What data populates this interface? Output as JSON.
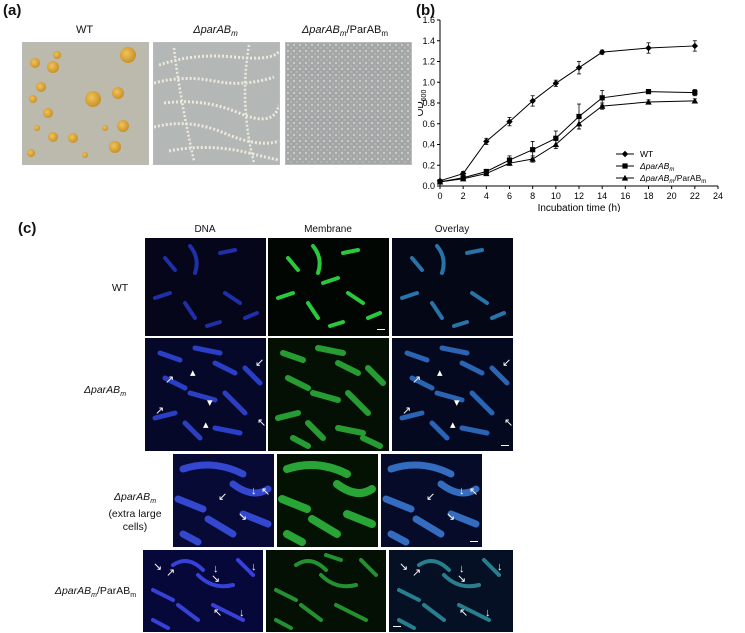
{
  "panels": {
    "a": {
      "letter": "(a)",
      "labels": [
        "WT",
        "ΔparAB",
        "ΔparAB/ParAB"
      ],
      "label_subs": [
        "",
        "m",
        "m"
      ],
      "label_tail": [
        "",
        "",
        "m"
      ]
    },
    "b": {
      "letter": "(b)"
    },
    "c": {
      "letter": "(c)",
      "columns": [
        "DNA",
        "Membrane",
        "Overlay"
      ],
      "rows": [
        {
          "main": "WT",
          "sub": "",
          "extra": "",
          "tail": ""
        },
        {
          "main": "ΔparAB",
          "sub": "m",
          "extra": "",
          "tail": ""
        },
        {
          "main": "ΔparAB",
          "sub": "m",
          "extra": "(extra large cells)",
          "tail": ""
        },
        {
          "main": "ΔparAB",
          "sub": "m",
          "extra": "",
          "tail": "/ParAB"
        }
      ],
      "row4_tail_sub": "m"
    }
  },
  "chart_data": {
    "type": "line",
    "xlabel": "Incubation time (h)",
    "ylabel": "OD",
    "ylabel_sub": "600",
    "xlim": [
      0,
      24
    ],
    "ylim": [
      0,
      1.6
    ],
    "xticks": [
      0,
      2,
      4,
      6,
      8,
      10,
      12,
      14,
      16,
      18,
      20,
      22,
      24
    ],
    "yticks": [
      0.0,
      0.2,
      0.4,
      0.6,
      0.8,
      1.0,
      1.2,
      1.4,
      1.6
    ],
    "legend_position": "bottom-right",
    "series": [
      {
        "name": "WT",
        "marker": "diamond",
        "x": [
          0,
          2,
          4,
          6,
          8,
          10,
          12,
          14,
          18,
          22
        ],
        "y": [
          0.05,
          0.12,
          0.43,
          0.62,
          0.82,
          0.99,
          1.14,
          1.29,
          1.33,
          1.35
        ],
        "err": [
          0.01,
          0.02,
          0.03,
          0.04,
          0.05,
          0.03,
          0.06,
          0.02,
          0.05,
          0.05
        ]
      },
      {
        "name": "ΔparAB",
        "name_sub": "m",
        "marker": "square",
        "x": [
          0,
          2,
          4,
          6,
          8,
          10,
          12,
          14,
          18,
          22
        ],
        "y": [
          0.04,
          0.08,
          0.14,
          0.25,
          0.35,
          0.46,
          0.67,
          0.85,
          0.91,
          0.9
        ],
        "err": [
          0.01,
          0.01,
          0.02,
          0.04,
          0.08,
          0.07,
          0.12,
          0.07,
          0.02,
          0.03
        ]
      },
      {
        "name": "ΔparAB",
        "name_sub": "m",
        "name_tail": "/ParAB",
        "name_tail_sub": "m",
        "marker": "triangle",
        "x": [
          0,
          2,
          4,
          6,
          8,
          10,
          12,
          14,
          18,
          22
        ],
        "y": [
          0.04,
          0.07,
          0.12,
          0.22,
          0.26,
          0.4,
          0.6,
          0.77,
          0.81,
          0.82
        ],
        "err": [
          0.01,
          0.01,
          0.02,
          0.02,
          0.03,
          0.04,
          0.05,
          0.03,
          0.02,
          0.02
        ]
      }
    ]
  }
}
